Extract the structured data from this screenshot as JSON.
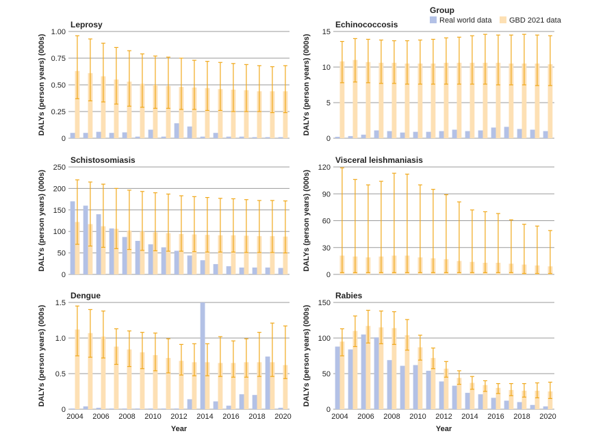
{
  "legend": {
    "title": "Group",
    "items": [
      {
        "label": "Real world data",
        "color": "#b3c1e6"
      },
      {
        "label": "GBD 2021 data",
        "color": "#fde0b4"
      }
    ]
  },
  "colors": {
    "real": "#b3c1e6",
    "gbd": "#fde0b4",
    "error_bar": "#f0a81a",
    "grid": "#9a9a9a",
    "axis_text": "#222222"
  },
  "chart_data": [
    {
      "type": "bar",
      "title": "Leprosy",
      "xlabel": "",
      "ylabel": "DALYs (person years) (000s)",
      "ylim": [
        0,
        1.0
      ],
      "yticks": [
        0,
        0.25,
        0.5,
        0.75,
        1.0
      ],
      "ytick_labels": [
        "0",
        "0.25",
        "0.50",
        "0.75",
        "1.00"
      ],
      "x": [
        2004,
        2005,
        2006,
        2007,
        2008,
        2009,
        2010,
        2011,
        2012,
        2013,
        2014,
        2015,
        2016,
        2017,
        2018,
        2019,
        2020
      ],
      "xtick_labels": [],
      "series": [
        {
          "name": "Real world data",
          "values": [
            0.05,
            0.05,
            0.06,
            0.05,
            0.055,
            0.015,
            0.08,
            0.015,
            0.14,
            0.11,
            0.015,
            0.05,
            0.015,
            0.015,
            0.01,
            0.01,
            0.01
          ]
        },
        {
          "name": "GBD 2021 data",
          "values": [
            0.63,
            0.61,
            0.58,
            0.55,
            0.53,
            0.51,
            0.5,
            0.49,
            0.48,
            0.475,
            0.47,
            0.46,
            0.455,
            0.45,
            0.44,
            0.44,
            0.44
          ],
          "lower": [
            0.37,
            0.35,
            0.34,
            0.32,
            0.3,
            0.29,
            0.28,
            0.28,
            0.27,
            0.27,
            0.26,
            0.26,
            0.25,
            0.25,
            0.25,
            0.24,
            0.24
          ],
          "upper": [
            0.96,
            0.93,
            0.89,
            0.85,
            0.82,
            0.79,
            0.77,
            0.76,
            0.75,
            0.73,
            0.72,
            0.71,
            0.7,
            0.69,
            0.68,
            0.67,
            0.68
          ]
        }
      ]
    },
    {
      "type": "bar",
      "title": "Echinococcosis",
      "xlabel": "",
      "ylabel": "DALYs (person years) (000s)",
      "ylim": [
        0,
        15
      ],
      "yticks": [
        0,
        5,
        10,
        15
      ],
      "ytick_labels": [
        "0",
        "5",
        "10",
        "15"
      ],
      "x": [
        2004,
        2005,
        2006,
        2007,
        2008,
        2009,
        2010,
        2011,
        2012,
        2013,
        2014,
        2015,
        2016,
        2017,
        2018,
        2019,
        2020
      ],
      "xtick_labels": [],
      "series": [
        {
          "name": "Real world data",
          "values": [
            0.2,
            0.3,
            0.5,
            1.1,
            1.0,
            0.8,
            0.9,
            0.9,
            1.0,
            1.2,
            1.0,
            1.1,
            1.5,
            1.6,
            1.3,
            1.2,
            1.0
          ]
        },
        {
          "name": "GBD 2021 data",
          "values": [
            10.8,
            11.0,
            10.7,
            10.6,
            10.6,
            10.5,
            10.5,
            10.5,
            10.6,
            10.6,
            10.6,
            10.6,
            10.6,
            10.5,
            10.5,
            10.5,
            10.4
          ],
          "lower": [
            7.8,
            7.9,
            7.8,
            7.7,
            7.7,
            7.6,
            7.6,
            7.6,
            7.6,
            7.6,
            7.6,
            7.6,
            7.5,
            7.5,
            7.5,
            7.4,
            7.4
          ],
          "upper": [
            13.6,
            14.0,
            13.9,
            13.8,
            13.7,
            13.7,
            13.8,
            13.9,
            14.1,
            14.2,
            14.4,
            14.6,
            14.5,
            14.5,
            14.6,
            14.5,
            14.4
          ]
        }
      ]
    },
    {
      "type": "bar",
      "title": "Schistosomiasis",
      "xlabel": "",
      "ylabel": "DALYs (person years) (000s)",
      "ylim": [
        0,
        250
      ],
      "yticks": [
        0,
        50,
        100,
        150,
        200,
        250
      ],
      "ytick_labels": [
        "0",
        "50",
        "100",
        "150",
        "200",
        "250"
      ],
      "x": [
        2004,
        2005,
        2006,
        2007,
        2008,
        2009,
        2010,
        2011,
        2012,
        2013,
        2014,
        2015,
        2016,
        2017,
        2018,
        2019,
        2020
      ],
      "xtick_labels": [],
      "series": [
        {
          "name": "Real world data",
          "values": [
            170,
            160,
            140,
            107,
            87,
            78,
            70,
            63,
            55,
            44,
            33,
            24,
            19,
            16,
            16,
            16,
            15
          ]
        },
        {
          "name": "GBD 2021 data",
          "values": [
            122,
            117,
            112,
            106,
            102,
            100,
            98,
            96,
            94,
            93,
            92,
            91,
            91,
            90,
            89,
            89,
            88
          ],
          "lower": [
            70,
            66,
            63,
            60,
            58,
            56,
            55,
            54,
            54,
            53,
            52,
            52,
            52,
            51,
            51,
            51,
            50
          ],
          "upper": [
            220,
            215,
            210,
            200,
            196,
            193,
            190,
            187,
            183,
            181,
            179,
            177,
            176,
            174,
            172,
            172,
            171
          ]
        }
      ]
    },
    {
      "type": "bar",
      "title": "Visceral leishmaniasis",
      "xlabel": "",
      "ylabel": "DALYs (person years) (000s)",
      "ylim": [
        0,
        120
      ],
      "yticks": [
        0,
        30,
        60,
        90,
        120
      ],
      "ytick_labels": [
        "0",
        "30",
        "60",
        "90",
        "120"
      ],
      "x": [
        2004,
        2005,
        2006,
        2007,
        2008,
        2009,
        2010,
        2011,
        2012,
        2013,
        2014,
        2015,
        2016,
        2017,
        2018,
        2019,
        2020
      ],
      "xtick_labels": [],
      "series": [
        {
          "name": "Real world data",
          "values": [
            0,
            0,
            0,
            0,
            0,
            0,
            0,
            0,
            0,
            0,
            0,
            0,
            0,
            0,
            0,
            0,
            0
          ]
        },
        {
          "name": "GBD 2021 data",
          "values": [
            21,
            20,
            19,
            20,
            21,
            21,
            19,
            18,
            17,
            15,
            14,
            13,
            13,
            12,
            11,
            10,
            9
          ],
          "lower": [
            2,
            2,
            2,
            2,
            2,
            2,
            2,
            2,
            2,
            2,
            2,
            2,
            2,
            2,
            1,
            1,
            1
          ],
          "upper": [
            119,
            106,
            100,
            104,
            113,
            112,
            100,
            95,
            89,
            81,
            72,
            70,
            68,
            61,
            56,
            54,
            49
          ]
        }
      ]
    },
    {
      "type": "bar",
      "title": "Dengue",
      "xlabel": "Year",
      "ylabel": "DALYs (person years) (000s)",
      "ylim": [
        0,
        1.5
      ],
      "yticks": [
        0,
        0.5,
        1.0,
        1.5
      ],
      "ytick_labels": [
        "0",
        "0.5",
        "1.0",
        "1.5"
      ],
      "x": [
        2004,
        2005,
        2006,
        2007,
        2008,
        2009,
        2010,
        2011,
        2012,
        2013,
        2014,
        2015,
        2016,
        2017,
        2018,
        2019,
        2020
      ],
      "xtick_labels": [
        "2004",
        "2006",
        "2008",
        "2010",
        "2012",
        "2014",
        "2016",
        "2018",
        "2020"
      ],
      "series": [
        {
          "name": "Real world data",
          "values": [
            0.01,
            0.04,
            0.02,
            0.01,
            0.01,
            0.01,
            0.01,
            0.01,
            0.01,
            0.14,
            1.5,
            0.11,
            0.05,
            0.21,
            0.2,
            0.74,
            0.02
          ]
        },
        {
          "name": "GBD 2021 data",
          "values": [
            1.12,
            1.07,
            1.02,
            0.88,
            0.84,
            0.8,
            0.76,
            0.72,
            0.68,
            0.66,
            0.66,
            0.65,
            0.65,
            0.66,
            0.66,
            0.66,
            0.62
          ],
          "lower": [
            0.75,
            0.73,
            0.72,
            0.63,
            0.6,
            0.57,
            0.54,
            0.51,
            0.48,
            0.47,
            0.47,
            0.46,
            0.45,
            0.45,
            0.46,
            0.46,
            0.43
          ],
          "upper": [
            1.45,
            1.4,
            1.38,
            1.13,
            1.1,
            1.08,
            1.07,
            0.99,
            0.91,
            0.92,
            0.92,
            1.02,
            0.96,
            0.99,
            1.08,
            1.21,
            1.17
          ]
        }
      ]
    },
    {
      "type": "bar",
      "title": "Rabies",
      "xlabel": "Year",
      "ylabel": "DALYs (person years) (000s)",
      "ylim": [
        0,
        150
      ],
      "yticks": [
        0,
        50,
        100,
        150
      ],
      "ytick_labels": [
        "0",
        "50",
        "100",
        "150"
      ],
      "x": [
        2004,
        2005,
        2006,
        2007,
        2008,
        2009,
        2010,
        2011,
        2012,
        2013,
        2014,
        2015,
        2016,
        2017,
        2018,
        2019,
        2020
      ],
      "xtick_labels": [
        "2004",
        "2006",
        "2008",
        "2010",
        "2012",
        "2014",
        "2016",
        "2018",
        "2020"
      ],
      "series": [
        {
          "name": "Real world data",
          "values": [
            88,
            84,
            105,
            101,
            69,
            61,
            62,
            54,
            39,
            33,
            23,
            21,
            16,
            12,
            10,
            6,
            4
          ]
        },
        {
          "name": "GBD 2021 data",
          "values": [
            95,
            110,
            117,
            115,
            114,
            104,
            87,
            72,
            57,
            44,
            37,
            34,
            30,
            27,
            26,
            26,
            25
          ],
          "lower": [
            75,
            88,
            93,
            92,
            91,
            83,
            69,
            57,
            45,
            35,
            28,
            25,
            22,
            19,
            17,
            16,
            15
          ],
          "upper": [
            113,
            131,
            139,
            138,
            137,
            126,
            104,
            86,
            67,
            54,
            46,
            40,
            36,
            36,
            36,
            37,
            38
          ]
        }
      ]
    }
  ]
}
